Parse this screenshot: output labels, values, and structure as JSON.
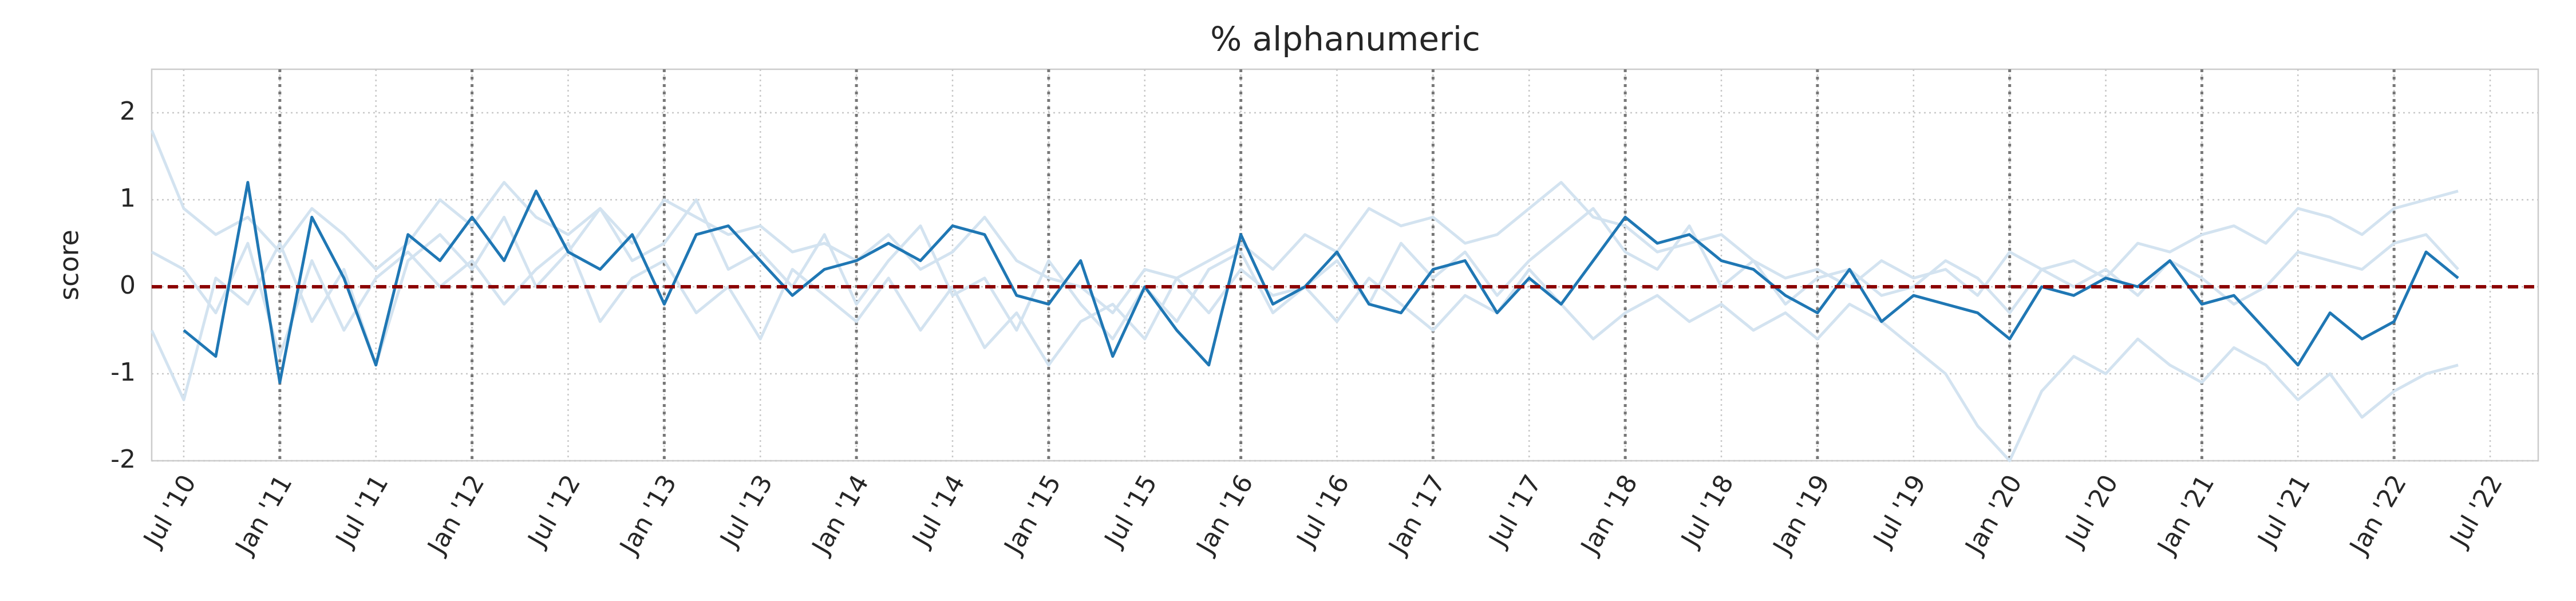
{
  "chart_data": {
    "type": "line",
    "title": "% alphanumeric",
    "ylabel": "score",
    "xlim": [
      "2010-05",
      "2022-10"
    ],
    "ylim": [
      -2,
      2.5
    ],
    "yticks": [
      -2,
      -1,
      0,
      1,
      2
    ],
    "xticks": [
      {
        "value": "2010-07",
        "label": "Jul '10"
      },
      {
        "value": "2011-01",
        "label": "Jan '11"
      },
      {
        "value": "2011-07",
        "label": "Jul '11"
      },
      {
        "value": "2012-01",
        "label": "Jan '12"
      },
      {
        "value": "2012-07",
        "label": "Jul '12"
      },
      {
        "value": "2013-01",
        "label": "Jan '13"
      },
      {
        "value": "2013-07",
        "label": "Jul '13"
      },
      {
        "value": "2014-01",
        "label": "Jan '14"
      },
      {
        "value": "2014-07",
        "label": "Jul '14"
      },
      {
        "value": "2015-01",
        "label": "Jan '15"
      },
      {
        "value": "2015-07",
        "label": "Jul '15"
      },
      {
        "value": "2016-01",
        "label": "Jan '16"
      },
      {
        "value": "2016-07",
        "label": "Jul '16"
      },
      {
        "value": "2017-01",
        "label": "Jan '17"
      },
      {
        "value": "2017-07",
        "label": "Jul '17"
      },
      {
        "value": "2018-01",
        "label": "Jan '18"
      },
      {
        "value": "2018-07",
        "label": "Jul '18"
      },
      {
        "value": "2019-01",
        "label": "Jan '19"
      },
      {
        "value": "2019-07",
        "label": "Jul '19"
      },
      {
        "value": "2020-01",
        "label": "Jan '20"
      },
      {
        "value": "2020-07",
        "label": "Jul '20"
      },
      {
        "value": "2021-01",
        "label": "Jan '21"
      },
      {
        "value": "2021-07",
        "label": "Jul '21"
      },
      {
        "value": "2022-01",
        "label": "Jan '22"
      },
      {
        "value": "2022-07",
        "label": "Jul '22"
      }
    ],
    "grid": true,
    "vlines": [
      "2011-01",
      "2012-01",
      "2013-01",
      "2014-01",
      "2015-01",
      "2016-01",
      "2017-01",
      "2018-01",
      "2019-01",
      "2020-01",
      "2021-01",
      "2022-01"
    ],
    "vline_color": "#777777",
    "hline": 0,
    "hline_color": "#8b0000",
    "x": [
      "2010-05",
      "2010-07",
      "2010-09",
      "2010-11",
      "2011-01",
      "2011-03",
      "2011-05",
      "2011-07",
      "2011-09",
      "2011-11",
      "2012-01",
      "2012-03",
      "2012-05",
      "2012-07",
      "2012-09",
      "2012-11",
      "2013-01",
      "2013-03",
      "2013-05",
      "2013-07",
      "2013-09",
      "2013-11",
      "2014-01",
      "2014-03",
      "2014-05",
      "2014-07",
      "2014-09",
      "2014-11",
      "2015-01",
      "2015-03",
      "2015-05",
      "2015-07",
      "2015-09",
      "2015-11",
      "2016-01",
      "2016-03",
      "2016-05",
      "2016-07",
      "2016-09",
      "2016-11",
      "2017-01",
      "2017-03",
      "2017-05",
      "2017-07",
      "2017-09",
      "2017-11",
      "2018-01",
      "2018-03",
      "2018-05",
      "2018-07",
      "2018-09",
      "2018-11",
      "2019-01",
      "2019-03",
      "2019-05",
      "2019-07",
      "2019-09",
      "2019-11",
      "2020-01",
      "2020-03",
      "2020-05",
      "2020-07",
      "2020-09",
      "2020-11",
      "2021-01",
      "2021-03",
      "2021-05",
      "2021-07",
      "2021-09",
      "2021-11",
      "2022-01",
      "2022-03",
      "2022-05"
    ],
    "series": [
      {
        "color": "#d3e3f0",
        "values": [
          1.8,
          0.9,
          0.6,
          0.8,
          0.4,
          0.9,
          0.6,
          0.2,
          0.5,
          1.0,
          0.7,
          1.2,
          0.8,
          0.6,
          0.9,
          0.5,
          1.0,
          0.8,
          0.6,
          0.7,
          0.4,
          0.5,
          0.3,
          0.6,
          0.2,
          0.4,
          0.8,
          0.3,
          0.1,
          0.0,
          -0.3,
          0.2,
          0.1,
          0.3,
          0.5,
          0.2,
          0.6,
          0.4,
          0.9,
          0.7,
          0.8,
          0.5,
          0.6,
          0.9,
          1.2,
          0.8,
          0.7,
          0.4,
          0.5,
          0.6,
          0.3,
          0.1,
          0.2,
          0.0,
          0.3,
          0.1,
          0.2,
          -0.1,
          0.4,
          0.2,
          0.3,
          0.1,
          0.5,
          0.4,
          0.6,
          0.7,
          0.5,
          0.9,
          0.8,
          0.6,
          0.9,
          1.0,
          1.1
        ]
      },
      {
        "color": "#d3e3f0",
        "values": [
          0.4,
          0.2,
          -0.3,
          0.5,
          -0.8,
          0.3,
          -0.5,
          0.1,
          0.4,
          0.0,
          0.3,
          -0.2,
          0.2,
          0.5,
          -0.4,
          0.1,
          0.3,
          -0.3,
          0.0,
          -0.6,
          0.2,
          -0.1,
          -0.4,
          0.1,
          -0.5,
          0.0,
          -0.7,
          -0.3,
          -0.9,
          -0.4,
          -0.2,
          -0.6,
          0.1,
          -0.3,
          0.2,
          -0.1,
          0.0,
          -0.4,
          0.1,
          -0.2,
          -0.5,
          -0.1,
          -0.3,
          0.2,
          -0.2,
          -0.6,
          -0.3,
          -0.1,
          -0.4,
          -0.2,
          -0.5,
          -0.3,
          -0.6,
          -0.2,
          -0.4,
          -0.7,
          -1.0,
          -1.6,
          -2.0,
          -1.2,
          -0.8,
          -1.0,
          -0.6,
          -0.9,
          -1.1,
          -0.7,
          -0.9,
          -1.3,
          -1.0,
          -1.5,
          -1.2,
          -1.0,
          -0.9
        ]
      },
      {
        "color": "#d3e3f0",
        "values": [
          -0.5,
          -1.3,
          0.1,
          -0.2,
          0.5,
          -0.4,
          0.2,
          -0.9,
          0.3,
          0.6,
          0.2,
          0.8,
          0.0,
          0.4,
          0.9,
          0.3,
          0.5,
          1.0,
          0.2,
          0.4,
          0.0,
          0.6,
          -0.2,
          0.3,
          0.7,
          -0.1,
          0.1,
          -0.5,
          0.3,
          -0.2,
          -0.6,
          0.0,
          -0.4,
          0.2,
          0.4,
          -0.3,
          0.0,
          0.3,
          -0.2,
          0.5,
          0.1,
          0.4,
          -0.1,
          0.3,
          0.6,
          0.9,
          0.4,
          0.2,
          0.7,
          0.0,
          0.3,
          -0.2,
          0.1,
          0.2,
          -0.1,
          0.0,
          0.3,
          0.1,
          -0.3,
          0.2,
          0.0,
          0.2,
          -0.1,
          0.3,
          0.1,
          -0.2,
          0.0,
          0.4,
          0.3,
          0.2,
          0.5,
          0.6,
          0.2
        ]
      },
      {
        "color": "#1f77b4",
        "values": [
          null,
          -0.5,
          -0.8,
          1.2,
          -1.1,
          0.8,
          0.1,
          -0.9,
          0.6,
          0.3,
          0.8,
          0.3,
          1.1,
          0.4,
          0.2,
          0.6,
          -0.2,
          0.6,
          0.7,
          0.3,
          -0.1,
          0.2,
          0.3,
          0.5,
          0.3,
          0.7,
          0.6,
          -0.1,
          -0.2,
          0.3,
          -0.8,
          0.0,
          -0.5,
          -0.9,
          0.6,
          -0.2,
          0.0,
          0.4,
          -0.2,
          -0.3,
          0.2,
          0.3,
          -0.3,
          0.1,
          -0.2,
          0.3,
          0.8,
          0.5,
          0.6,
          0.3,
          0.2,
          -0.1,
          -0.3,
          0.2,
          -0.4,
          -0.1,
          -0.2,
          -0.3,
          -0.6,
          0.0,
          -0.1,
          0.1,
          0.0,
          0.3,
          -0.2,
          -0.1,
          -0.5,
          -0.9,
          -0.3,
          -0.6,
          -0.4,
          0.4,
          0.1
        ]
      }
    ]
  }
}
